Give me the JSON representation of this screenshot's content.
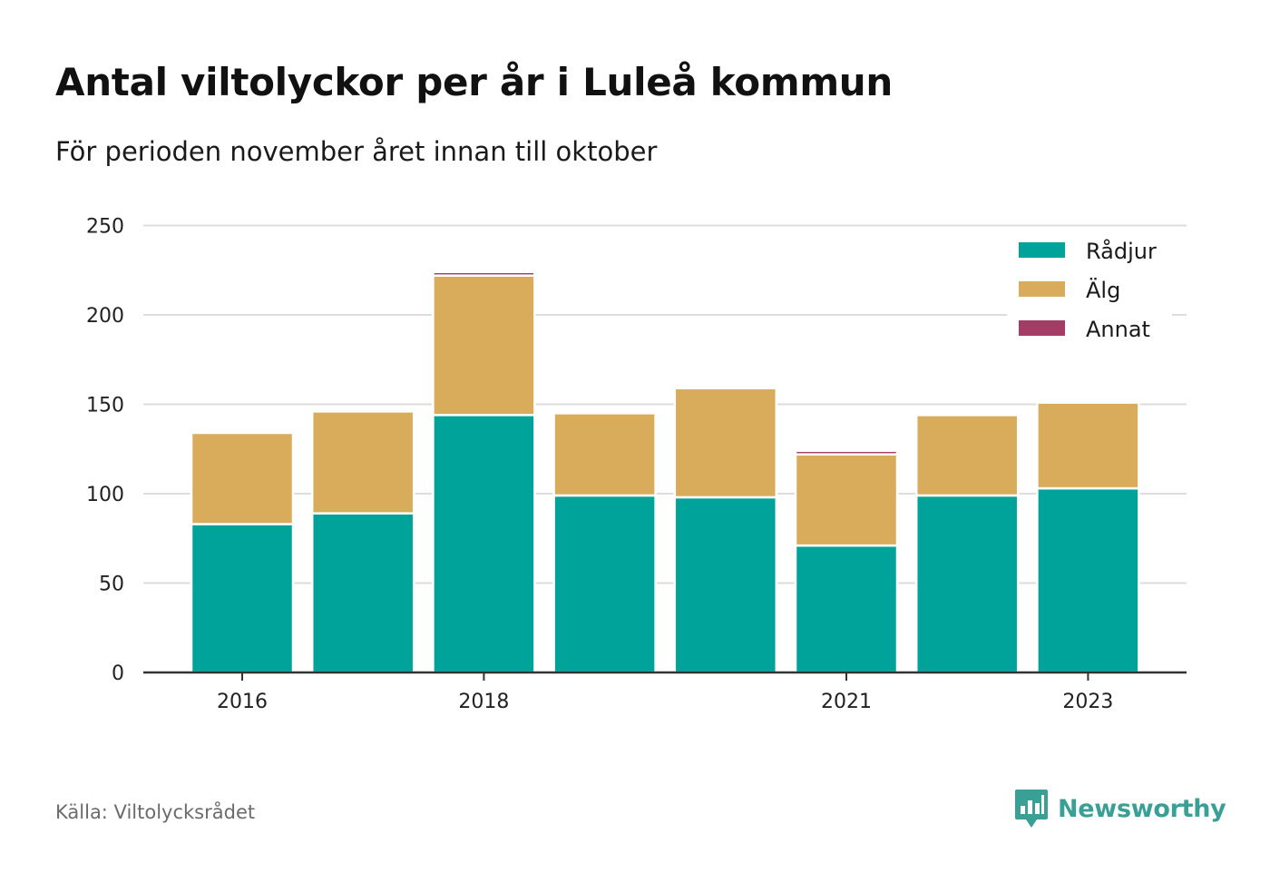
{
  "title": "Antal viltolyckor per år i Luleå kommun",
  "subtitle": "För perioden november året innan till oktober",
  "source": "Källa: Viltolycksrådet",
  "brand": "Newsworthy",
  "colors": {
    "radjur": "#00a39a",
    "alg": "#d9ac5b",
    "annat": "#a33d66",
    "grid": "#dddddd",
    "axis": "#333333",
    "brand": "#3aa095"
  },
  "chart_data": {
    "type": "bar",
    "stacked": true,
    "categories": [
      "2016",
      "2017",
      "2018",
      "2019",
      "2020",
      "2021",
      "2022",
      "2023"
    ],
    "x_tick_labels": [
      "2016",
      "2018",
      "2021",
      "2023"
    ],
    "series": [
      {
        "name": "Rådjur",
        "color": "#00a39a",
        "values": [
          83,
          89,
          144,
          99,
          98,
          71,
          99,
          103
        ]
      },
      {
        "name": "Älg",
        "color": "#d9ac5b",
        "values": [
          51,
          57,
          78,
          46,
          61,
          51,
          45,
          48
        ]
      },
      {
        "name": "Annat",
        "color": "#a33d66",
        "values": [
          0,
          0,
          2,
          0,
          0,
          2,
          1,
          1
        ]
      }
    ],
    "ylim": [
      0,
      250
    ],
    "yticks": [
      0,
      50,
      100,
      150,
      200,
      250
    ],
    "ytick_labels": [
      "0",
      "50",
      "100",
      "150",
      "200",
      "250"
    ],
    "grid": true,
    "legend_position": "top-right"
  }
}
